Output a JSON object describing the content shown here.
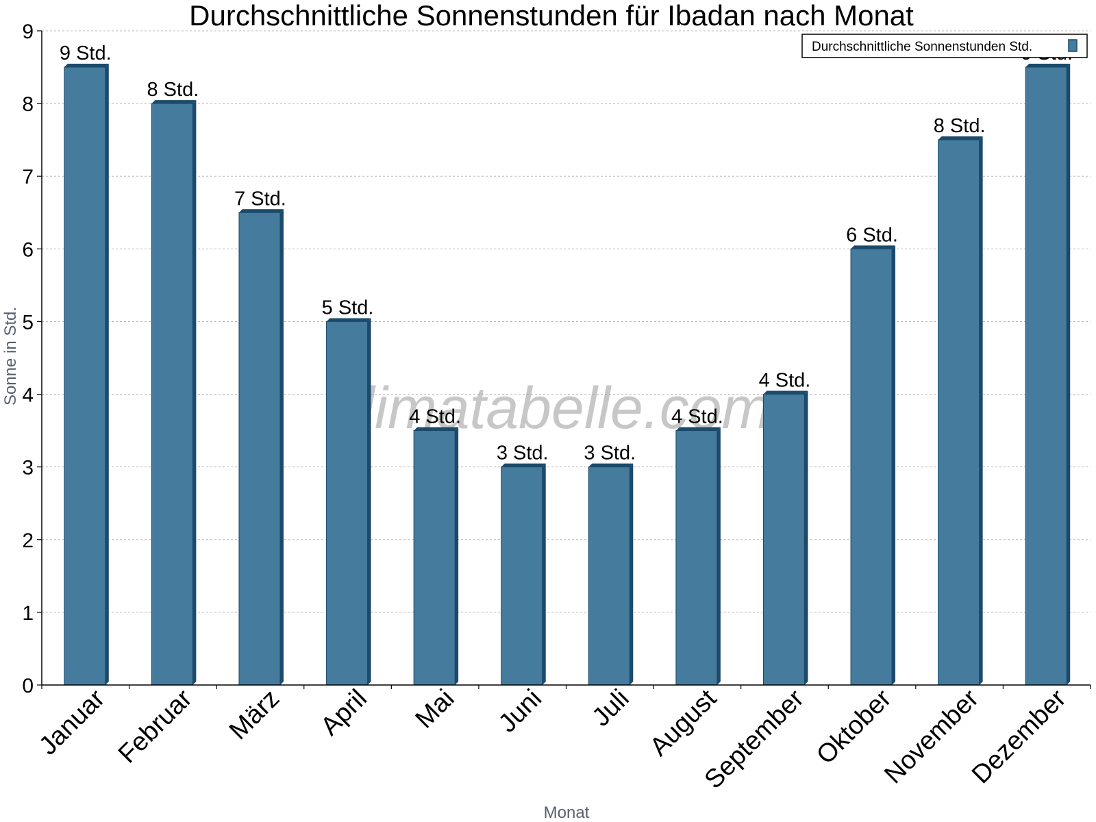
{
  "chart_data": {
    "type": "bar",
    "title": "Durchschnittliche Sonnenstunden für Ibadan nach Monat",
    "xlabel": "Monat",
    "ylabel": "Sonne in Std.",
    "ylim": [
      0,
      9
    ],
    "yticks": [
      "0",
      "1",
      "2",
      "3",
      "4",
      "5",
      "6",
      "7",
      "8",
      "9"
    ],
    "grid": true,
    "legend_position": "top-right",
    "categories": [
      "Januar",
      "Februar",
      "März",
      "April",
      "Mai",
      "Juni",
      "Juli",
      "August",
      "September",
      "Oktober",
      "November",
      "Dezember"
    ],
    "series": [
      {
        "name": "Durchschnittliche Sonnenstunden Std.",
        "values": [
          8.5,
          8.0,
          6.5,
          5.0,
          3.5,
          3.0,
          3.0,
          3.5,
          4.0,
          6.0,
          7.5,
          8.5
        ],
        "labels": [
          "9 Std.",
          "8 Std.",
          "7 Std.",
          "5 Std.",
          "4 Std.",
          "3 Std.",
          "3 Std.",
          "4 Std.",
          "4 Std.",
          "6 Std.",
          "8 Std.",
          "9 Std."
        ],
        "color": "#457b9d",
        "edge_color": "#1b4a6b"
      }
    ]
  },
  "watermark": "klimatabelle.com"
}
